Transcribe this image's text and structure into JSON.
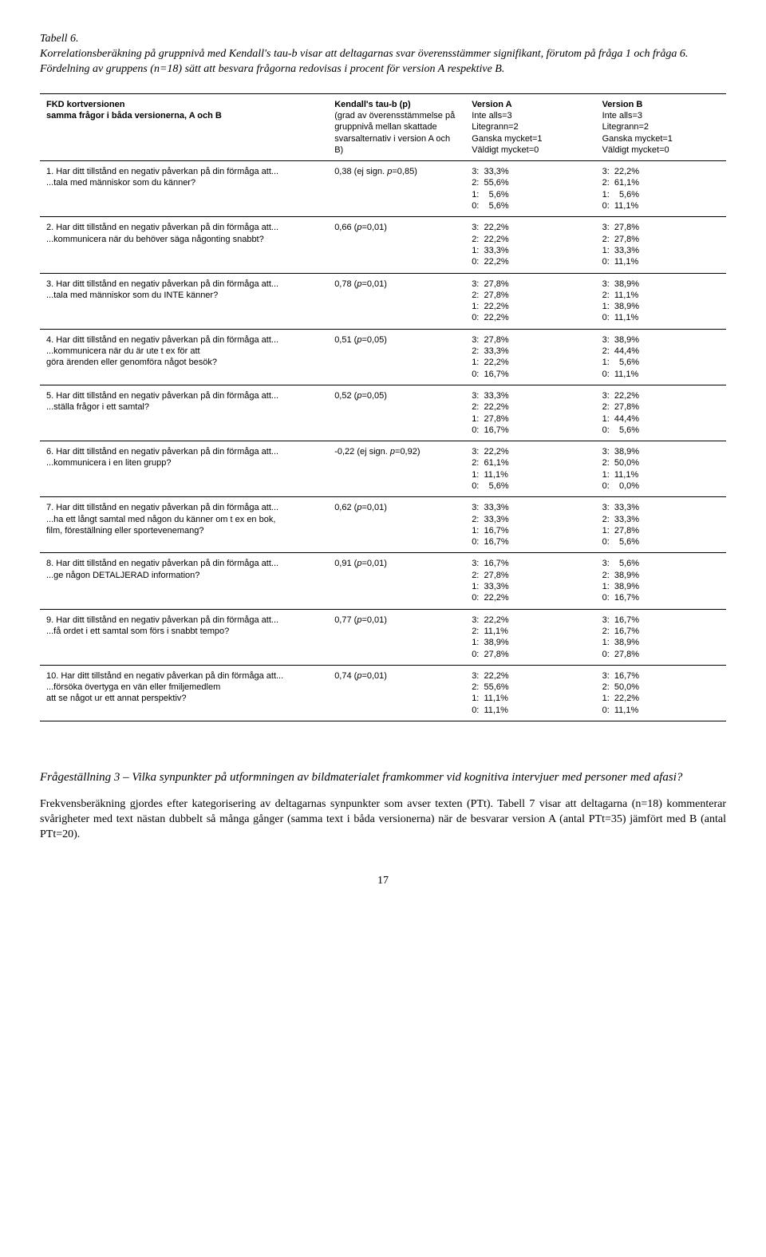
{
  "caption": {
    "label": "Tabell 6.",
    "text": "Korrelationsberäkning på gruppnivå med Kendall's tau-b visar att deltagarnas svar överensstämmer signifikant, förutom på fråga 1 och fråga 6. Fördelning av gruppens (n=18) sätt att besvara frågorna redovisas i procent för version A respektive B."
  },
  "headers": {
    "c1a": "FKD kortversionen",
    "c1b": "samma frågor i båda versionerna, A och B",
    "c2a": "Kendall's tau-b (p)",
    "c2b": "(grad av överensstämmelse på gruppnivå mellan skattade svarsalternativ i version A och B)",
    "c3a": "Version A",
    "c3b": "Inte alls=3\nLitegrann=2\nGanska mycket=1\nVäldigt mycket=0",
    "c4a": "Version B",
    "c4b": "Inte alls=3\nLitegrann=2\nGanska mycket=1\nVäldigt mycket=0"
  },
  "rows": [
    {
      "q": "1. Har ditt tillstånd en negativ påverkan på din förmåga att...\n...tala med människor som du känner?",
      "stat": "0,38 (ej sign. <i>p</i>=0,85)",
      "a": "3:  33,3%\n2:  55,6%\n1:    5,6%\n0:    5,6%",
      "b": "3:  22,2%\n2:  61,1%\n1:    5,6%\n0:  11,1%"
    },
    {
      "q": "2. Har ditt tillstånd en negativ påverkan på din förmåga att...\n...kommunicera när du behöver säga någonting snabbt?",
      "stat": "0,66 (<i>p</i>=0,01)",
      "a": "3:  22,2%\n2:  22,2%\n1:  33,3%\n0:  22,2%",
      "b": "3:  27,8%\n2:  27,8%\n1:  33,3%\n0:  11,1%"
    },
    {
      "q": "3. Har ditt tillstånd en negativ påverkan på din förmåga att...\n...tala med människor som du INTE känner?",
      "stat": "0,78 (<i>p</i>=0,01)",
      "a": "3:  27,8%\n2:  27,8%\n1:  22,2%\n0:  22,2%",
      "b": "3:  38,9%\n2:  11,1%\n1:  38,9%\n0:  11,1%"
    },
    {
      "q": "4. Har ditt tillstånd en negativ påverkan på din förmåga att...\n...kommunicera när du är ute t ex för att\ngöra ärenden eller genomföra något besök?",
      "stat": "0,51 (<i>p</i>=0,05)",
      "a": "3:  27,8%\n2:  33,3%\n1:  22,2%\n0:  16,7%",
      "b": "3:  38,9%\n2:  44,4%\n1:    5,6%\n0:  11,1%"
    },
    {
      "q": "5. Har ditt tillstånd en negativ påverkan på din förmåga att...\n...ställa frågor i ett samtal?",
      "stat": "0,52 (<i>p</i>=0,05)",
      "a": "3:  33,3%\n2:  22,2%\n1:  27,8%\n0:  16,7%",
      "b": "3:  22,2%\n2:  27,8%\n1:  44,4%\n0:    5,6%"
    },
    {
      "q": "6. Har ditt tillstånd en negativ påverkan på din förmåga att...\n...kommunicera i en liten grupp?",
      "stat": "-0,22 (ej sign. <i>p</i>=0,92)",
      "a": "3:  22,2%\n2:  61,1%\n1:  11,1%\n0:    5,6%",
      "b": "3:  38,9%\n2:  50,0%\n1:  11,1%\n0:    0,0%"
    },
    {
      "q": "7. Har ditt tillstånd en negativ påverkan på din förmåga att...\n...ha ett långt samtal med någon du känner om t ex en bok,\nfilm, föreställning eller sportevenemang?",
      "stat": "0,62 (<i>p</i>=0,01)",
      "a": "3:  33,3%\n2:  33,3%\n1:  16,7%\n0:  16,7%",
      "b": "3:  33,3%\n2:  33,3%\n1:  27,8%\n0:    5,6%"
    },
    {
      "q": "8. Har ditt tillstånd en negativ påverkan på din förmåga att...\n...ge någon DETALJERAD information?",
      "stat": "0,91 (<i>p</i>=0,01)",
      "a": "3:  16,7%\n2:  27,8%\n1:  33,3%\n0:  22,2%",
      "b": "3:    5,6%\n2:  38,9%\n1:  38,9%\n0:  16,7%"
    },
    {
      "q": "9. Har ditt tillstånd en negativ påverkan på din förmåga att...\n...få ordet i ett samtal som förs i snabbt tempo?",
      "stat": "0,77 (<i>p</i>=0,01)",
      "a": "3:  22,2%\n2:  11,1%\n1:  38,9%\n0:  27,8%",
      "b": "3:  16,7%\n2:  16,7%\n1:  38,9%\n0:  27,8%"
    },
    {
      "q": "10. Har ditt tillstånd en negativ påverkan på din förmåga att...\n...försöka övertyga en vän eller fmiljemedlem\natt se något ur ett annat perspektiv?",
      "stat": "0,74 (<i>p</i>=0,01)",
      "a": "3:  22,2%\n2:  55,6%\n1:  11,1%\n0:  11,1%",
      "b": "3:  16,7%\n2:  50,0%\n1:  22,2%\n0:  11,1%"
    }
  ],
  "section_heading": "Frågeställning 3 – Vilka synpunkter på utformningen av bildmaterialet framkommer vid kognitiva intervjuer med personer med afasi?",
  "body_paragraph": "Frekvensberäkning gjordes efter kategorisering av deltagarnas synpunkter som avser texten (PTt). Tabell 7 visar att deltagarna (n=18) kommenterar svårigheter med text nästan dubbelt så många gånger (samma text i båda versionerna) när de besvarar version A (antal PTt=35) jämfört med B (antal PTt=20).",
  "page_number": "17"
}
